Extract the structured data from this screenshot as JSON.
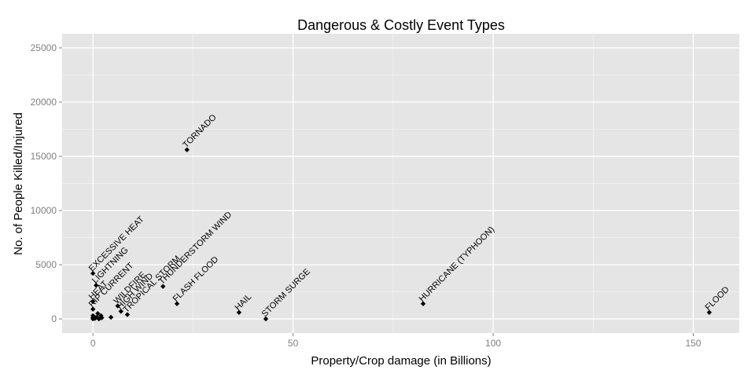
{
  "chart_data": {
    "type": "scatter",
    "title": "Dangerous & Costly Event Types",
    "xlabel": "Property/Crop damage (in Billions)",
    "ylabel": "No. of People Killed/Injured",
    "xlim": [
      -7.7,
      161.5
    ],
    "ylim": [
      -1300,
      26300
    ],
    "xticks": [
      0,
      50,
      100,
      150
    ],
    "yticks": [
      0,
      5000,
      10000,
      15000,
      20000,
      25000
    ],
    "grid": true,
    "colors": {
      "panel": "#e5e5e5",
      "grid_major": "#ffffff",
      "grid_minor": "#f2f2f2",
      "point": "#000000",
      "tick_label": "#7f7f7f"
    },
    "points": [
      {
        "label": "TORNADO",
        "x": 23.5,
        "y": 15600
      },
      {
        "label": "EXCESSIVE HEAT",
        "x": 0.0,
        "y": 4200
      },
      {
        "label": "LIGHTNING",
        "x": 0.8,
        "y": 3100
      },
      {
        "label": "HEAT",
        "x": 0.0,
        "y": 1600
      },
      {
        "label": "RIP CURRENT",
        "x": 0.0,
        "y": 900
      },
      {
        "label": "WILDFIRE",
        "x": 6.2,
        "y": 1200
      },
      {
        "label": "HIGH WIND",
        "x": 7.0,
        "y": 700
      },
      {
        "label": "TROPICAL STORM",
        "x": 8.6,
        "y": 400
      },
      {
        "label": "THUNDERSTORM WIND",
        "x": 17.5,
        "y": 3000
      },
      {
        "label": "FLASH FLOOD",
        "x": 21.0,
        "y": 1400
      },
      {
        "label": "HAIL",
        "x": 36.5,
        "y": 600
      },
      {
        "label": "STORM SURGE",
        "x": 43.2,
        "y": 0
      },
      {
        "label": "HURRICANE (TYPHOON)",
        "x": 82.5,
        "y": 1400
      },
      {
        "label": "FLOOD",
        "x": 154.0,
        "y": 600
      }
    ],
    "unlabeled_points": [
      {
        "x": 0.0,
        "y": 300
      },
      {
        "x": 0.0,
        "y": 100
      },
      {
        "x": 0.0,
        "y": 0
      },
      {
        "x": 0.3,
        "y": 200
      },
      {
        "x": 0.5,
        "y": 50
      },
      {
        "x": 1.0,
        "y": 150
      },
      {
        "x": 1.2,
        "y": 500
      },
      {
        "x": 1.5,
        "y": 0
      },
      {
        "x": 2.0,
        "y": 300
      },
      {
        "x": 2.2,
        "y": 100
      },
      {
        "x": 4.5,
        "y": 150
      }
    ]
  }
}
